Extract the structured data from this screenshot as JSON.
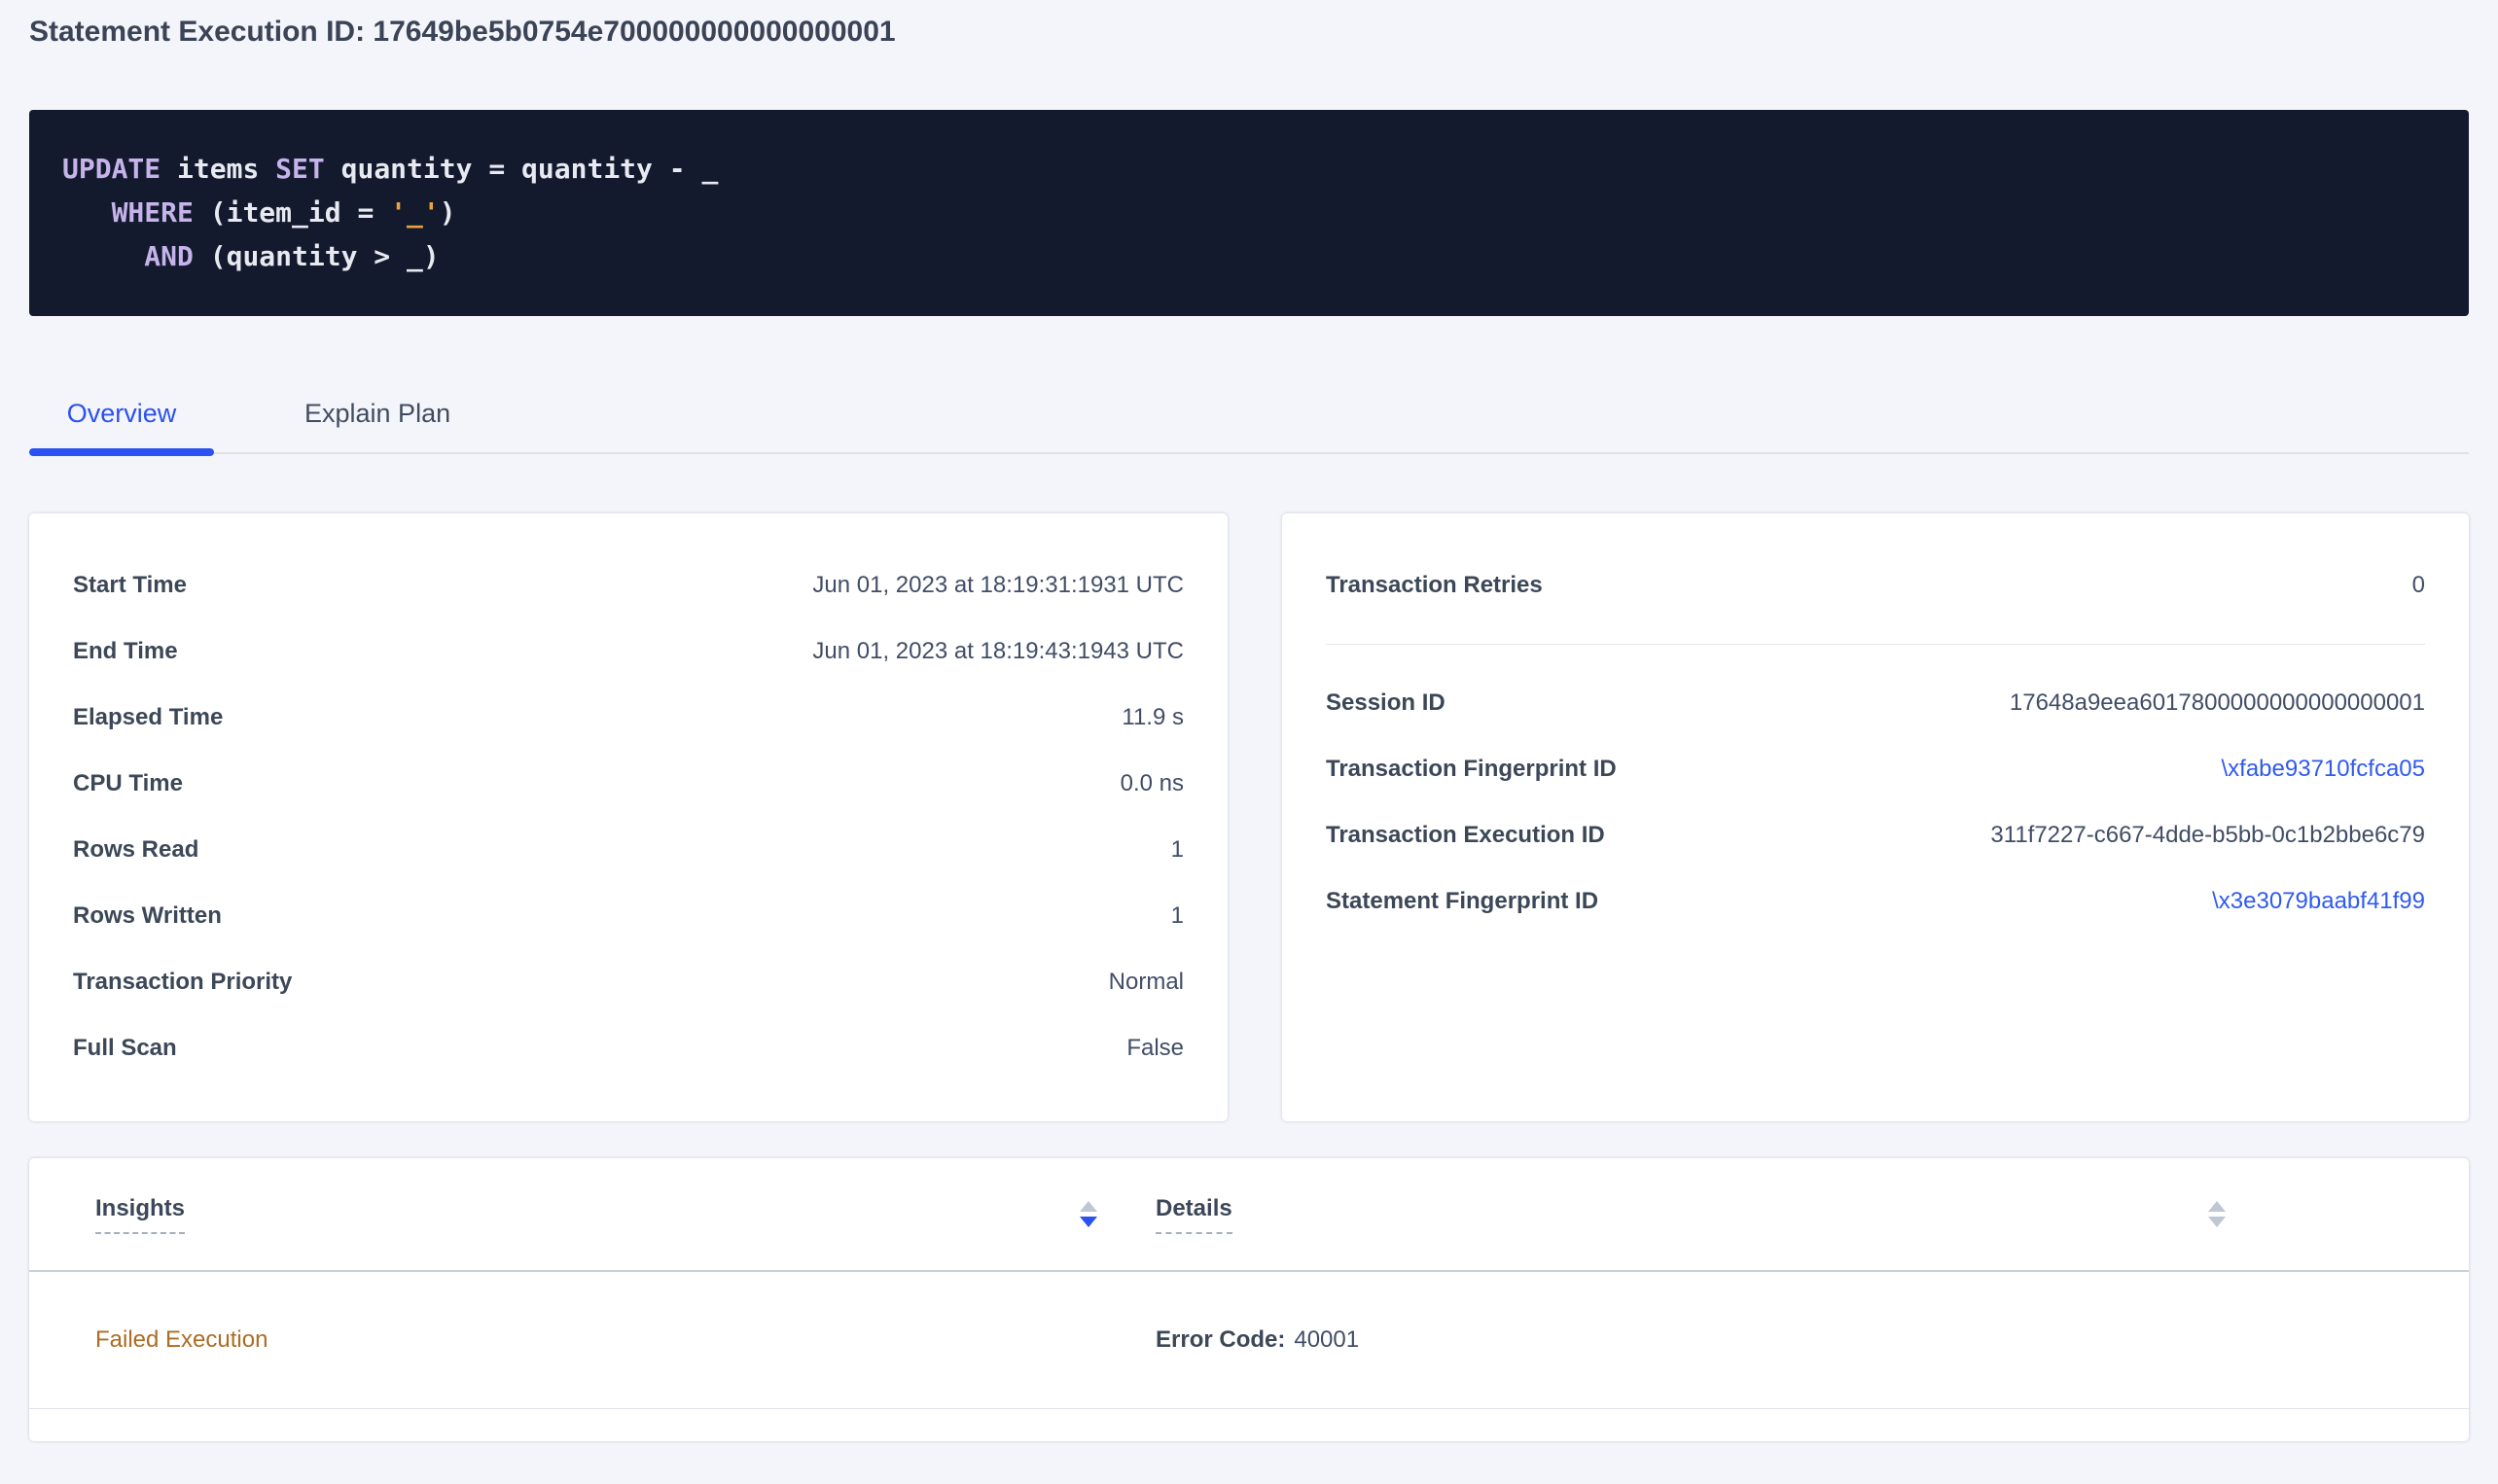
{
  "colors": {
    "accent_blue": "#2b51f0",
    "link_blue": "#2f5af0",
    "warning_text": "#ab6c23",
    "code_background": "#131a2e",
    "code_keyword": "#c5b3ea",
    "code_string": "#e8a33d",
    "page_background": "#f4f5fa"
  },
  "header": {
    "title": "Statement Execution ID: 17649be5b0754e700000000000000001"
  },
  "sql": {
    "l1_kw1": "UPDATE",
    "l1_t1": " items ",
    "l1_kw2": "SET",
    "l1_t2": " quantity = quantity - _",
    "l2_t0": "   ",
    "l2_kw": "WHERE",
    "l2_t1": " (item_id = ",
    "l2_str": "'_'",
    "l2_t2": ")",
    "l3_t0": "     ",
    "l3_kw": "AND",
    "l3_t1": " (quantity > _)"
  },
  "tabs": {
    "overview": "Overview",
    "explain_plan": "Explain Plan"
  },
  "overview_card": {
    "rows": [
      {
        "label": "Start Time",
        "value": "Jun 01, 2023 at 18:19:31:1931 UTC"
      },
      {
        "label": "End Time",
        "value": "Jun 01, 2023 at 18:19:43:1943 UTC"
      },
      {
        "label": "Elapsed Time",
        "value": "11.9 s"
      },
      {
        "label": "CPU Time",
        "value": "0.0 ns"
      },
      {
        "label": "Rows Read",
        "value": "1"
      },
      {
        "label": "Rows Written",
        "value": "1"
      },
      {
        "label": "Transaction Priority",
        "value": "Normal"
      },
      {
        "label": "Full Scan",
        "value": "False"
      }
    ]
  },
  "transaction_card": {
    "retries": {
      "label": "Transaction Retries",
      "value": "0"
    },
    "rows": [
      {
        "label": "Session ID",
        "value": "17648a9eea6017800000000000000001"
      },
      {
        "label": "Transaction Fingerprint ID",
        "value": "\\xfabe93710fcfca05"
      },
      {
        "label": "Transaction Execution ID",
        "value": "311f7227-c667-4dde-b5bb-0c1b2bbe6c79"
      },
      {
        "label": "Statement Fingerprint ID",
        "value": "\\x3e3079baabf41f99"
      }
    ]
  },
  "insights_table": {
    "insights_header": "Insights",
    "details_header": "Details",
    "row": {
      "insight": "Failed Execution",
      "details_label": "Error Code:",
      "details_value": "40001"
    }
  }
}
